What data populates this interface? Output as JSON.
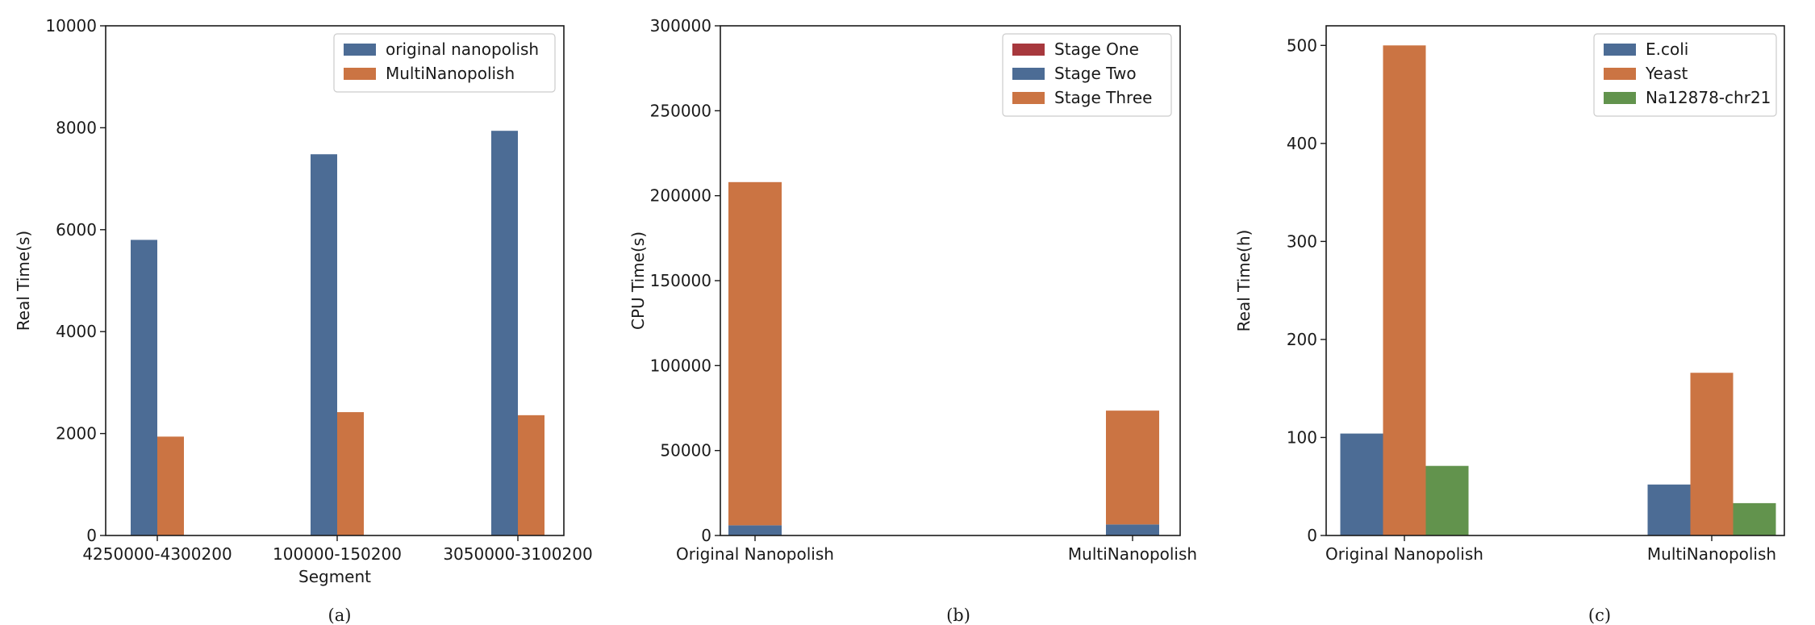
{
  "colors": {
    "blue": "#4c6c95",
    "orange": "#cb7443",
    "red": "#a7383d",
    "green": "#62934d"
  },
  "chart_data": [
    {
      "type": "bar",
      "caption": "(a)",
      "xlabel": "Segment",
      "ylabel": "Real Time(s)",
      "ylim": [
        0,
        10000
      ],
      "yticks": [
        0,
        2000,
        4000,
        6000,
        8000,
        10000
      ],
      "categories": [
        "4250000-4300200",
        "100000-150200",
        "3050000-3100200"
      ],
      "series": [
        {
          "name": "original nanopolish",
          "color": "#4c6c95",
          "values": [
            5800,
            7480,
            7940
          ]
        },
        {
          "name": "MultiNanopolish",
          "color": "#cb7443",
          "values": [
            1940,
            2420,
            2360
          ]
        }
      ],
      "legend": "top-right"
    },
    {
      "type": "bar",
      "stacked": true,
      "caption": "(b)",
      "xlabel": "",
      "ylabel": "CPU Time(s)",
      "ylim": [
        0,
        300000
      ],
      "yticks": [
        0,
        50000,
        100000,
        150000,
        200000,
        250000,
        300000
      ],
      "categories": [
        "Original Nanopolish",
        "MultiNanopolish"
      ],
      "series": [
        {
          "name": "Stage One",
          "color": "#a7383d",
          "values": [
            0,
            0
          ]
        },
        {
          "name": "Stage Two",
          "color": "#4c6c95",
          "values": [
            6000,
            6500
          ]
        },
        {
          "name": "Stage Three",
          "color": "#cb7443",
          "values": [
            202000,
            67000
          ]
        }
      ],
      "legend": "top-right"
    },
    {
      "type": "bar",
      "caption": "(c)",
      "xlabel": "",
      "ylabel": "Real Time(h)",
      "ylim": [
        0,
        520
      ],
      "yticks": [
        0,
        100,
        200,
        300,
        400,
        500
      ],
      "categories": [
        "Original Nanopolish",
        "MultiNanopolish"
      ],
      "series": [
        {
          "name": "E.coli",
          "color": "#4c6c95",
          "values": [
            104,
            52
          ]
        },
        {
          "name": "Yeast",
          "color": "#cb7443",
          "values": [
            500,
            166
          ]
        },
        {
          "name": "Na12878-chr21",
          "color": "#62934d",
          "values": [
            71,
            33
          ]
        }
      ],
      "legend": "top-right"
    }
  ]
}
